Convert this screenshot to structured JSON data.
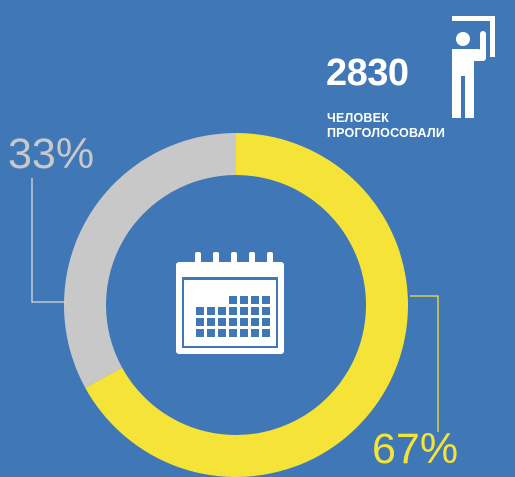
{
  "colors": {
    "background": "#3f77b7",
    "yes_segment": "#f5e437",
    "other_segment": "#c8c8c8",
    "foreground": "#ffffff"
  },
  "voters": {
    "count": "2830",
    "caption_line1": "ЧЕЛОВЕК",
    "caption_line2": "ПРОГОЛОСОВАЛИ"
  },
  "icons": {
    "person": "person-raising-hand-icon",
    "center": "calendar-icon"
  },
  "chart_data": {
    "type": "pie",
    "donut": true,
    "slices": [
      {
        "label": "67%",
        "value": 67,
        "color": "#f5e437"
      },
      {
        "label": "33%",
        "value": 33,
        "color": "#c8c8c8"
      }
    ]
  }
}
